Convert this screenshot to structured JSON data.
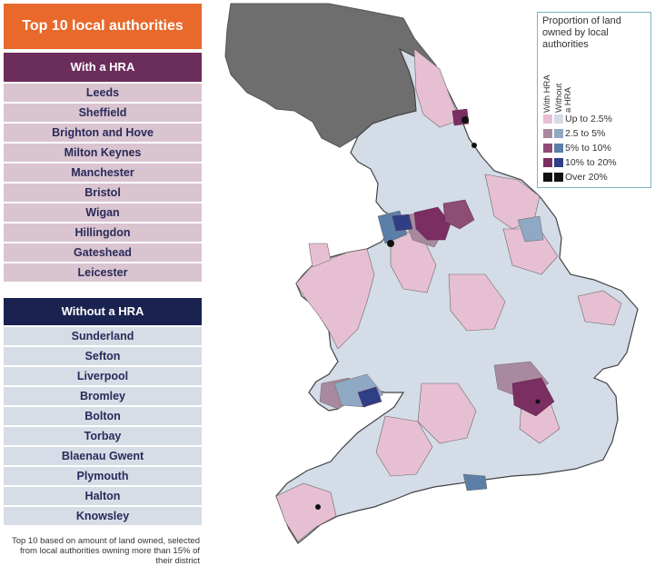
{
  "title": "Top 10 local authorities",
  "with_hra": {
    "heading": "With a HRA",
    "items": [
      "Leeds",
      "Sheffield",
      "Brighton and Hove",
      "Milton Keynes",
      "Manchester",
      "Bristol",
      "Wigan",
      "Hillingdon",
      "Gateshead",
      "Leicester"
    ]
  },
  "without_hra": {
    "heading": "Without a HRA",
    "items": [
      "Sunderland",
      "Sefton",
      "Liverpool",
      "Bromley",
      "Bolton",
      "Torbay",
      "Blaenau Gwent",
      "Plymouth",
      "Halton",
      "Knowsley"
    ]
  },
  "footnote": "Top 10 based on amount of land owned, selected from local authorities owning more than 15% of their district",
  "legend": {
    "title": "Proportion of land owned by local authorities",
    "col_with": "With HRA",
    "col_without_1": "Without",
    "col_without_2": "a HRA",
    "bins": [
      {
        "label": "Up to 2.5%",
        "with": "#e7bfd3",
        "without": "#d4dce7"
      },
      {
        "label": "2.5 to 5%",
        "with": "#a8899e",
        "without": "#8fa8c3"
      },
      {
        "label": "5% to 10%",
        "with": "#8e4d75",
        "without": "#5b7fa6"
      },
      {
        "label": "10% to 20%",
        "with": "#7a2e62",
        "without": "#2f3f86"
      },
      {
        "label": "Over 20%",
        "with": "#111111",
        "without": "#111111"
      }
    ]
  },
  "colors": {
    "title_bg": "#e8692b",
    "hra_heading": "#6b2d5b",
    "nohra_heading": "#1a2350",
    "hra_row": "#d9c4cf",
    "nohra_row": "#d7dde6",
    "scotland": "#6e6e6e",
    "outline": "#444444"
  }
}
